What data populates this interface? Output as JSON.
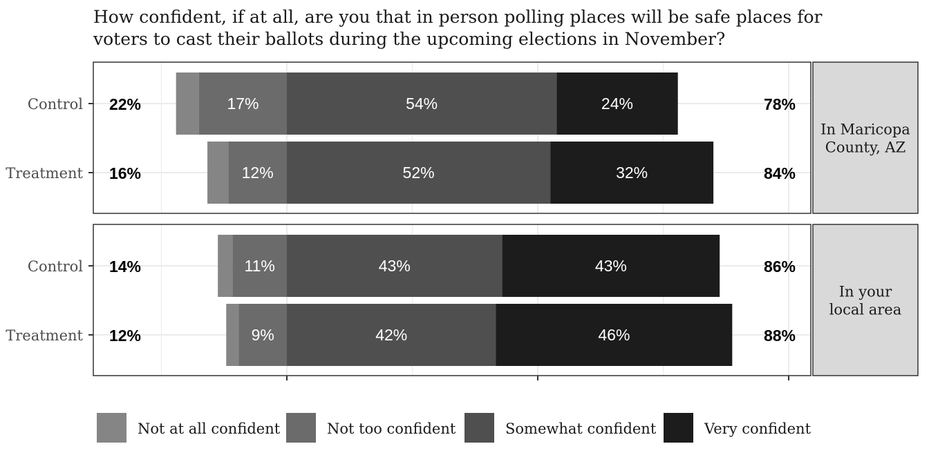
{
  "colors": {
    "Not at all confident": "#858585",
    "Not too confident": "#6b6b6b",
    "Somewhat confident": "#4f4f4f",
    "Very confident": "#1c1c1c",
    "strip": "#d9d9d9",
    "grid": "#ebebeb"
  },
  "chart_data": {
    "type": "bar",
    "orientation": "horizontal",
    "stacked": "diverging",
    "title": "How confident, if at all, are you that in person polling places will be safe places for voters to cast their ballots during the upcoming elections in November?",
    "xlabel": "",
    "ylabel": "",
    "x_range": [
      -50,
      100
    ],
    "x_ticks": [
      0,
      60,
      120
    ],
    "grid": true,
    "legend_position": "bottom",
    "legend": [
      "Not at all confident",
      "Not too confident",
      "Somewhat confident",
      "Very confident"
    ],
    "panels": [
      {
        "label": "In Maricopa County, AZ",
        "rows": [
          {
            "group": "Control",
            "negative_total": "22%",
            "positive_total": "78%",
            "values": {
              "Not at all confident": 5.5,
              "Not too confident": 21,
              "Somewhat confident": 64.5,
              "Very confident": 29
            },
            "labels": {
              "Not too confident": "17%",
              "Somewhat confident": "54%",
              "Very confident": "24%"
            }
          },
          {
            "group": "Treatment",
            "negative_total": "16%",
            "positive_total": "84%",
            "values": {
              "Not at all confident": 5,
              "Not too confident": 14,
              "Somewhat confident": 63,
              "Very confident": 39
            },
            "labels": {
              "Not too confident": "12%",
              "Somewhat confident": "52%",
              "Very confident": "32%"
            }
          }
        ]
      },
      {
        "label": "In your local area",
        "rows": [
          {
            "group": "Control",
            "negative_total": "14%",
            "positive_total": "86%",
            "values": {
              "Not at all confident": 3.5,
              "Not too confident": 13,
              "Somewhat confident": 51.5,
              "Very confident": 52
            },
            "labels": {
              "Not too confident": "11%",
              "Somewhat confident": "43%",
              "Very confident": "43%"
            }
          },
          {
            "group": "Treatment",
            "negative_total": "12%",
            "positive_total": "88%",
            "values": {
              "Not at all confident": 3,
              "Not too confident": 11.5,
              "Somewhat confident": 50,
              "Very confident": 56.5
            },
            "labels": {
              "Not too confident": "9%",
              "Somewhat confident": "42%",
              "Very confident": "46%"
            }
          }
        ]
      }
    ]
  }
}
